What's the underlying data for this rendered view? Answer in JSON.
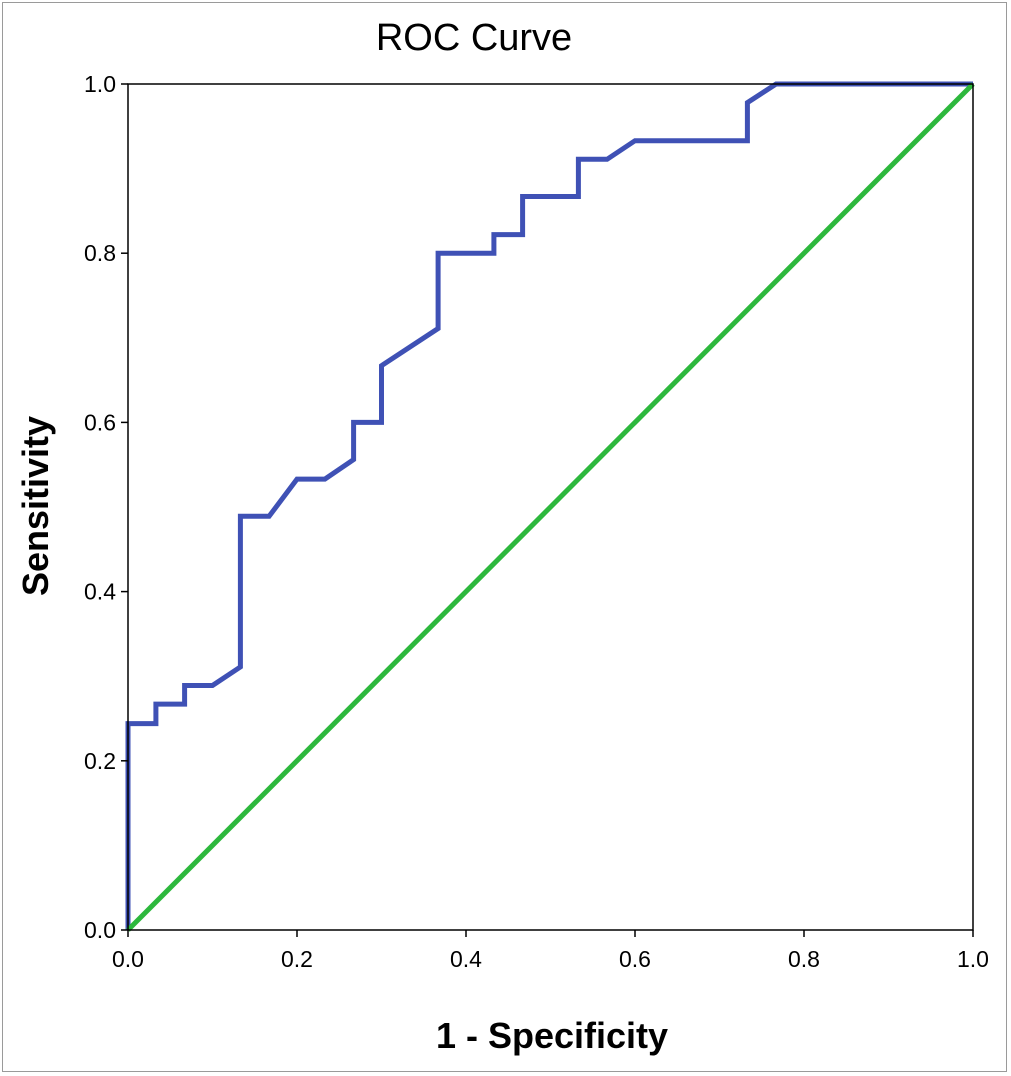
{
  "chart_data": {
    "type": "line",
    "title": "ROC Curve",
    "xlabel": "1 - Specificity",
    "ylabel": "Sensitivity",
    "xlim": [
      0,
      1
    ],
    "ylim": [
      0,
      1
    ],
    "x_ticks": [
      "0.0",
      "0.2",
      "0.4",
      "0.6",
      "0.8",
      "1.0"
    ],
    "y_ticks": [
      "0.0",
      "0.2",
      "0.4",
      "0.6",
      "0.8",
      "1.0"
    ],
    "grid": false,
    "legend": "none",
    "series": [
      {
        "color": "#3f51b5",
        "x": [
          0,
          0,
          0.033,
          0.033,
          0.067,
          0.067,
          0.1,
          0.133,
          0.133,
          0.167,
          0.2,
          0.233,
          0.267,
          0.267,
          0.3,
          0.3,
          0.367,
          0.367,
          0.433,
          0.433,
          0.467,
          0.467,
          0.533,
          0.533,
          0.567,
          0.6,
          0.733,
          0.733,
          0.767,
          1.0
        ],
        "y": [
          0,
          0.244,
          0.244,
          0.267,
          0.267,
          0.289,
          0.289,
          0.311,
          0.489,
          0.489,
          0.533,
          0.533,
          0.556,
          0.6,
          0.6,
          0.667,
          0.711,
          0.8,
          0.8,
          0.822,
          0.822,
          0.867,
          0.867,
          0.911,
          0.911,
          0.933,
          0.933,
          0.978,
          1.0,
          1.0
        ]
      },
      {
        "color": "#2db83d",
        "x": [
          0,
          1
        ],
        "y": [
          0,
          1
        ]
      }
    ]
  }
}
